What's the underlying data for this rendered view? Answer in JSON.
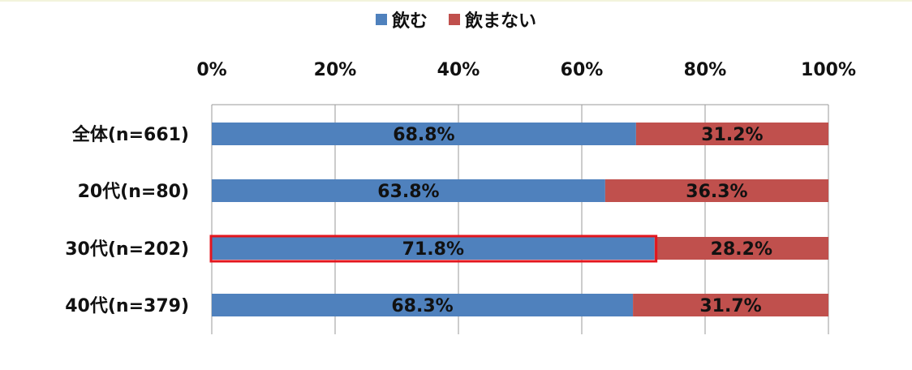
{
  "chart_data": {
    "type": "bar",
    "orientation": "horizontal",
    "stacked": true,
    "percent": true,
    "title": "",
    "xlabel": "",
    "ylabel": "",
    "xlim": [
      0,
      100
    ],
    "x_ticks": [
      "0%",
      "20%",
      "40%",
      "60%",
      "80%",
      "100%"
    ],
    "x_tick_values": [
      0,
      20,
      40,
      60,
      80,
      100
    ],
    "categories": [
      "全体(n=661)",
      "20代(n=80)",
      "30代(n=202)",
      "40代(n=379)"
    ],
    "series": [
      {
        "name": "飲む",
        "color": "#4f81bd",
        "values": [
          68.8,
          63.8,
          71.8,
          68.3
        ],
        "labels": [
          "68.8%",
          "63.8%",
          "71.8%",
          "68.3%"
        ]
      },
      {
        "name": "飲まない",
        "color": "#c0504d",
        "values": [
          31.2,
          36.3,
          28.2,
          31.7
        ],
        "labels": [
          "31.2%",
          "36.3%",
          "28.2%",
          "31.7%"
        ]
      }
    ],
    "legend_position": "top",
    "grid": true,
    "highlight": {
      "category_index": 2,
      "series_index": 0,
      "color": "#e3161e"
    }
  }
}
